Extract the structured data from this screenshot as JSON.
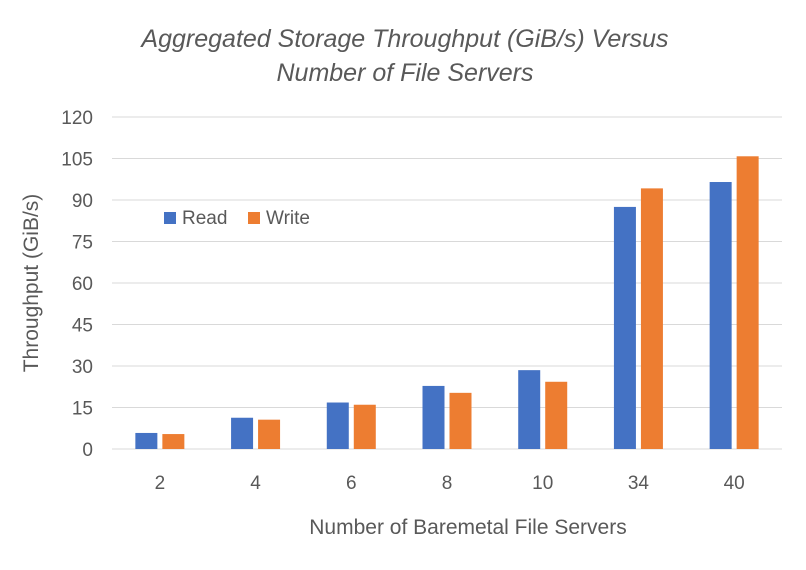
{
  "chart_data": {
    "type": "bar",
    "title": [
      "Aggregated Storage Throughput (GiB/s) Versus",
      "Number of File Servers"
    ],
    "xlabel": "Number of Baremetal File Servers",
    "ylabel": "Throughput (GiB/s)",
    "categories": [
      "2",
      "4",
      "6",
      "8",
      "10",
      "34",
      "40"
    ],
    "ylim": [
      0,
      120
    ],
    "yticks": [
      0,
      15,
      30,
      45,
      60,
      75,
      90,
      105,
      120
    ],
    "grid": true,
    "legend_position": "upper-left inside plot",
    "series": [
      {
        "name": "Read",
        "color": "#4472C4",
        "values": [
          5.8,
          11.3,
          16.8,
          22.8,
          28.5,
          87.5,
          96.5
        ]
      },
      {
        "name": "Write",
        "color": "#ED7D31",
        "values": [
          5.4,
          10.6,
          16.0,
          20.3,
          24.3,
          94.2,
          105.8
        ]
      }
    ]
  }
}
